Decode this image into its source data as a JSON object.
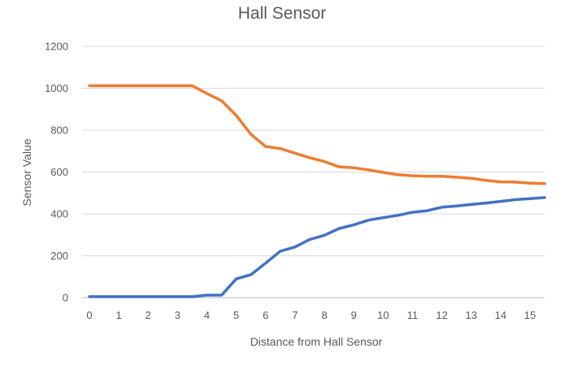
{
  "chart_data": {
    "type": "line",
    "title": "Hall Sensor",
    "xlabel": "Distance from Hall Sensor",
    "ylabel": "Sensor Value",
    "xlim": [
      0,
      15.6
    ],
    "ylim": [
      0,
      1200
    ],
    "x_ticks": [
      0,
      1,
      2,
      3,
      4,
      5,
      6,
      7,
      8,
      9,
      10,
      11,
      12,
      13,
      14,
      15
    ],
    "y_ticks": [
      0,
      200,
      400,
      600,
      800,
      1000,
      1200
    ],
    "grid": true,
    "legend": "none",
    "series": [
      {
        "color": "#ed7d31",
        "x": [
          0,
          0.5,
          1,
          1.5,
          2,
          2.5,
          3,
          3.5,
          4,
          4.5,
          5,
          5.5,
          6,
          6.5,
          7,
          7.5,
          8,
          8.5,
          9,
          9.5,
          10,
          10.5,
          11,
          11.5,
          12,
          12.5,
          13,
          13.5,
          14,
          14.5,
          15,
          15.5
        ],
        "y": [
          1012,
          1012,
          1012,
          1012,
          1012,
          1012,
          1012,
          1012,
          975,
          940,
          870,
          780,
          722,
          712,
          690,
          668,
          650,
          625,
          620,
          610,
          598,
          587,
          582,
          580,
          580,
          575,
          570,
          560,
          553,
          552,
          547,
          545
        ]
      },
      {
        "color": "#4472c4",
        "x": [
          0,
          0.5,
          1,
          1.5,
          2,
          2.5,
          3,
          3.5,
          4,
          4.5,
          5,
          5.5,
          6,
          6.5,
          7,
          7.5,
          8,
          8.5,
          9,
          9.5,
          10,
          10.5,
          11,
          11.5,
          12,
          12.5,
          13,
          13.5,
          14,
          14.5,
          15,
          15.5
        ],
        "y": [
          5,
          5,
          5,
          5,
          5,
          5,
          5,
          5,
          12,
          12,
          90,
          110,
          165,
          222,
          242,
          278,
          298,
          330,
          348,
          370,
          382,
          393,
          408,
          415,
          432,
          438,
          445,
          452,
          460,
          468,
          473,
          478
        ]
      }
    ]
  }
}
